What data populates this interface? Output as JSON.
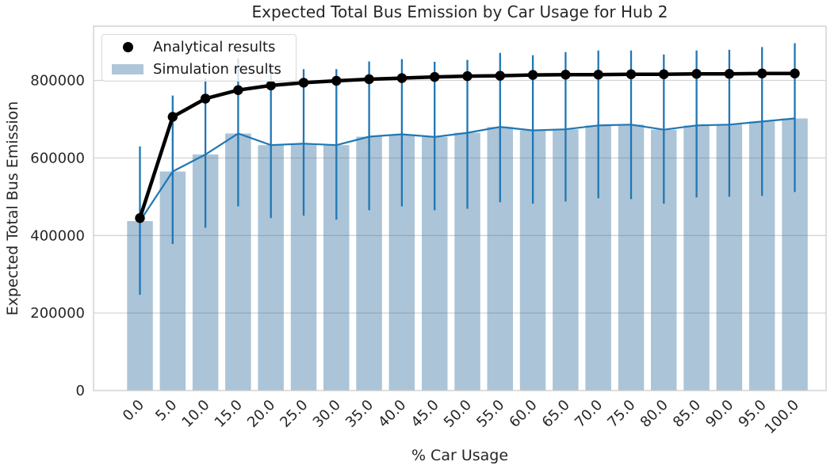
{
  "chart_data": {
    "type": "bar",
    "title": "Expected Total Bus Emission by Car Usage for Hub 2",
    "xlabel": "% Car Usage",
    "ylabel": "Expected Total Bus Emission",
    "categories": [
      "0.0",
      "5.0",
      "10.0",
      "15.0",
      "20.0",
      "25.0",
      "30.0",
      "35.0",
      "40.0",
      "45.0",
      "50.0",
      "55.0",
      "60.0",
      "65.0",
      "70.0",
      "75.0",
      "80.0",
      "85.0",
      "90.0",
      "95.0",
      "100.0"
    ],
    "series": [
      {
        "name": "Analytical results",
        "type": "line",
        "color": "#000000",
        "values": [
          445000,
          706000,
          753000,
          775000,
          787000,
          794000,
          799000,
          803000,
          806000,
          809000,
          811000,
          812000,
          814000,
          815000,
          815000,
          816000,
          816000,
          817000,
          817000,
          818000,
          818000
        ]
      },
      {
        "name": "Simulation results",
        "type": "bar",
        "color": "#abc4d8",
        "line_color": "#1f77b4",
        "error_color": "#1f77b4",
        "values": [
          437000,
          565000,
          609000,
          663000,
          633000,
          637000,
          633000,
          655000,
          661000,
          654000,
          665000,
          680000,
          671000,
          674000,
          684000,
          686000,
          673000,
          684000,
          686000,
          694000,
          702000
        ],
        "error_low": [
          247000,
          378000,
          420000,
          475000,
          445000,
          451000,
          441000,
          465000,
          475000,
          465000,
          469000,
          486000,
          482000,
          488000,
          496000,
          494000,
          482000,
          498000,
          500000,
          502000,
          512000
        ],
        "error_high": [
          630000,
          761000,
          805000,
          857000,
          833000,
          829000,
          829000,
          849000,
          855000,
          848000,
          853000,
          871000,
          865000,
          873000,
          877000,
          877000,
          867000,
          877000,
          879000,
          886000,
          896000
        ]
      }
    ],
    "yticks": [
      0,
      200000,
      400000,
      600000,
      800000
    ],
    "ytick_labels": [
      "0",
      "200000",
      "400000",
      "600000",
      "800000"
    ],
    "ylim": [
      0,
      940000
    ],
    "grid": "horizontal",
    "legend_position": "upper-left"
  },
  "legend": {
    "items": [
      {
        "label": "Analytical results",
        "marker": "circle",
        "color": "#000000"
      },
      {
        "label": "Simulation results",
        "marker": "rect",
        "color": "#aec6d9"
      }
    ]
  }
}
